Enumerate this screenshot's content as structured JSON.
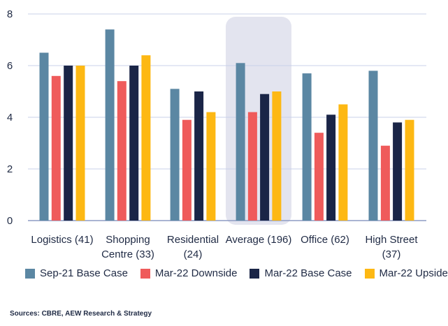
{
  "chart_data": {
    "type": "bar",
    "categories": [
      [
        "Logistics (41)"
      ],
      [
        "Shopping",
        "Centre (33)"
      ],
      [
        "Residential",
        "(24)"
      ],
      [
        "Average (196)"
      ],
      [
        "Office (62)"
      ],
      [
        "High Street",
        "(37)"
      ]
    ],
    "highlighted_category_index": 3,
    "ylim": [
      0,
      8
    ],
    "yticks": [
      "0",
      "2",
      "4",
      "6",
      "8"
    ],
    "grid": true,
    "legend_position": "bottom",
    "series": [
      {
        "name": "Sep-21 Base Case",
        "color": "#5b87a3",
        "values": [
          6.5,
          7.4,
          5.1,
          6.1,
          5.7,
          5.8
        ]
      },
      {
        "name": "Mar-22 Downside",
        "color": "#ef5b5b",
        "values": [
          5.6,
          5.4,
          3.9,
          4.2,
          3.4,
          2.9
        ]
      },
      {
        "name": "Mar-22 Base Case",
        "color": "#1a2547",
        "values": [
          6.0,
          6.0,
          5.0,
          4.9,
          4.1,
          3.8
        ]
      },
      {
        "name": "Mar-22 Upside",
        "color": "#fdb813",
        "values": [
          6.0,
          6.4,
          4.2,
          5.0,
          4.5,
          3.9
        ]
      }
    ]
  },
  "source_text": "Sources: CBRE, AEW Research & Strategy"
}
